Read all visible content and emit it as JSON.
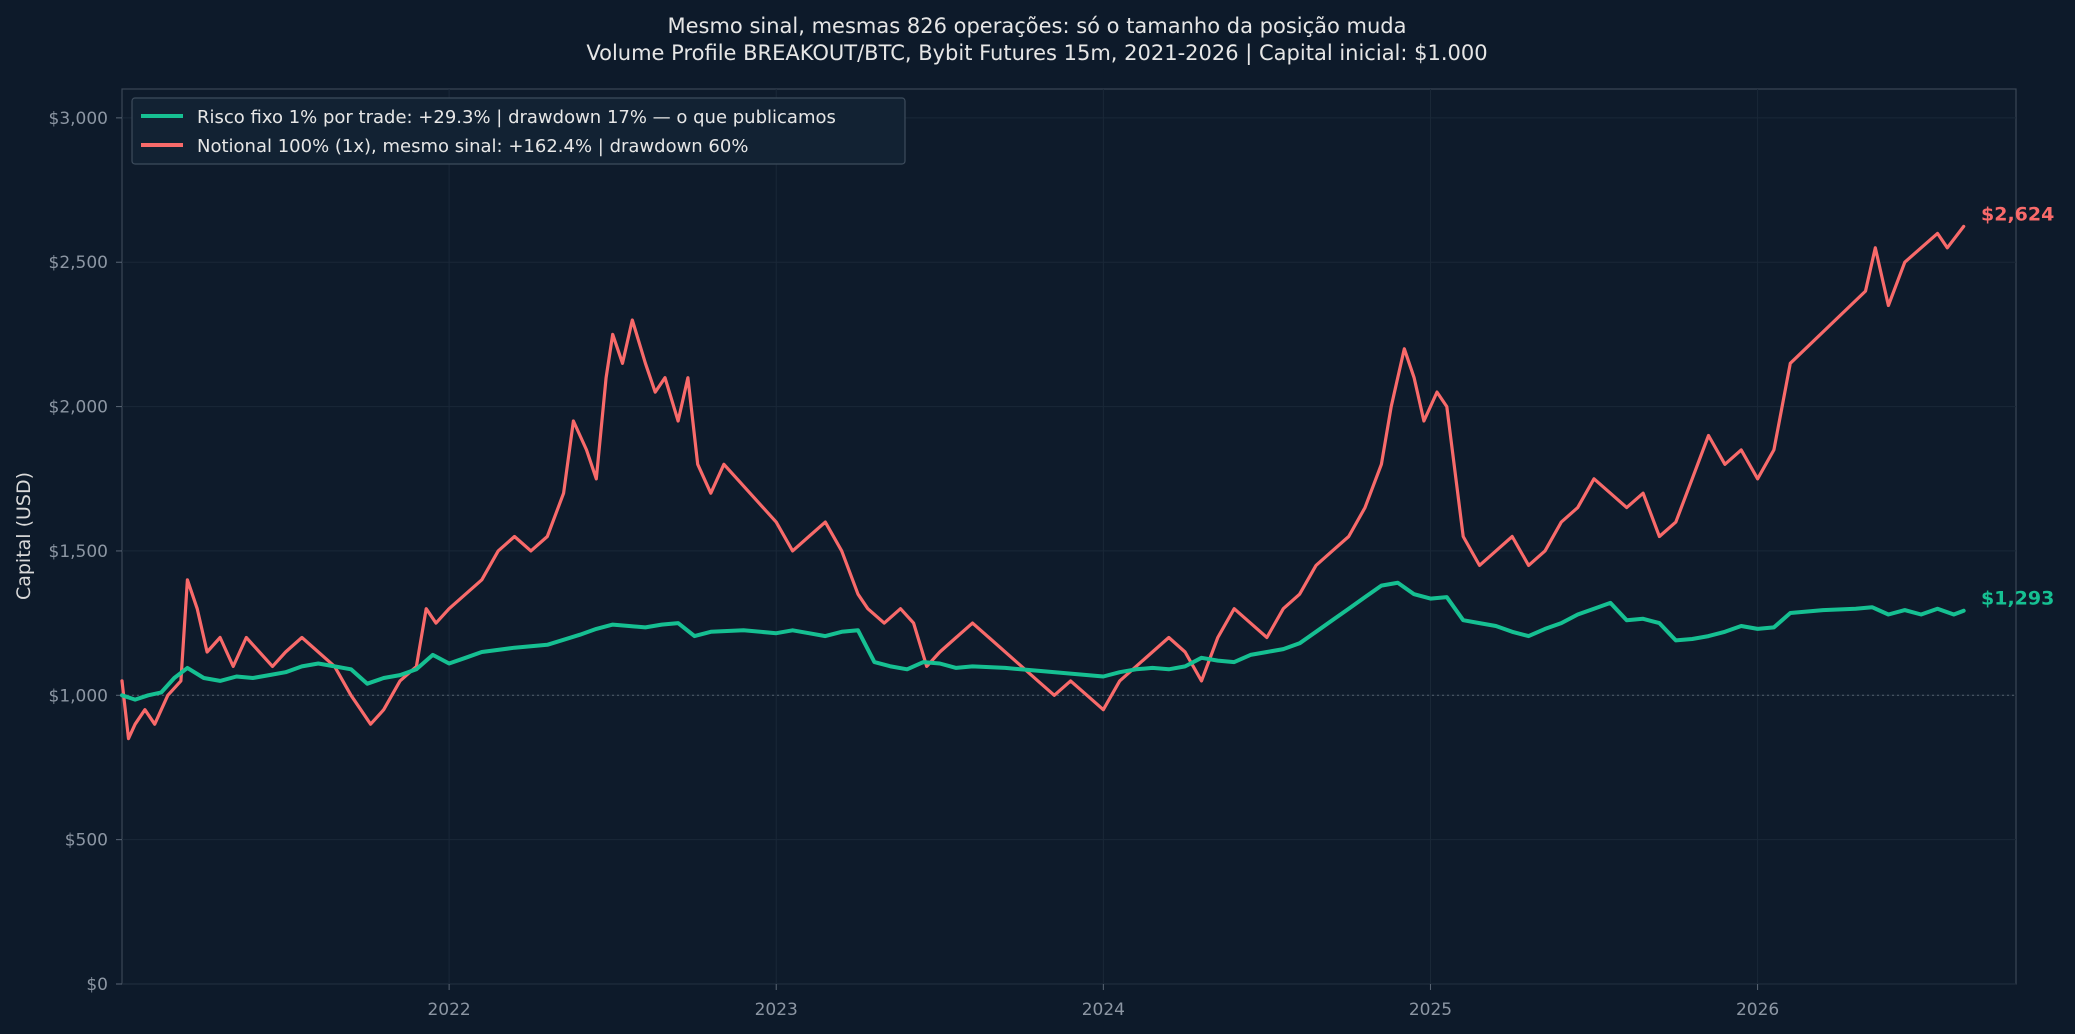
{
  "chart_data": {
    "type": "line",
    "title": "Mesmo sinal, mesmas 826 operações: só o tamanho da posição muda",
    "subtitle": "Volume Profile BREAKOUT/BTC, Bybit Futures 15m, 2021-2026 | Capital inicial: $1.000",
    "ylabel": "Capital (USD)",
    "xlabel": "",
    "xlim": [
      2021.0,
      2026.79
    ],
    "ylim": [
      0,
      3100
    ],
    "x_ticks": [
      2022,
      2023,
      2024,
      2025,
      2026
    ],
    "x_tick_labels": [
      "2022",
      "2023",
      "2024",
      "2025",
      "2026"
    ],
    "y_ticks": [
      0,
      500,
      1000,
      1500,
      2000,
      2500,
      3000
    ],
    "y_tick_labels": [
      "$0",
      "$500",
      "$1,000",
      "$1,500",
      "$2,000",
      "$2,500",
      "$3,000"
    ],
    "reference_line": 1000,
    "grid": true,
    "legend": "top-left",
    "series": [
      {
        "name": "Risco fixo 1% por trade: +29.3% | drawdown 17% — o que publicamos",
        "color": "#16c092",
        "end_label": "$1,293",
        "x": [
          2021.0,
          2021.04,
          2021.08,
          2021.12,
          2021.16,
          2021.2,
          2021.25,
          2021.3,
          2021.35,
          2021.4,
          2021.45,
          2021.5,
          2021.55,
          2021.6,
          2021.65,
          2021.7,
          2021.75,
          2021.8,
          2021.85,
          2021.9,
          2021.95,
          2022.0,
          2022.05,
          2022.1,
          2022.2,
          2022.3,
          2022.4,
          2022.45,
          2022.5,
          2022.55,
          2022.6,
          2022.65,
          2022.7,
          2022.75,
          2022.8,
          2022.9,
          2023.0,
          2023.05,
          2023.1,
          2023.15,
          2023.2,
          2023.25,
          2023.3,
          2023.35,
          2023.4,
          2023.45,
          2023.5,
          2023.55,
          2023.6,
          2023.7,
          2023.8,
          2023.9,
          2024.0,
          2024.05,
          2024.1,
          2024.15,
          2024.2,
          2024.25,
          2024.3,
          2024.35,
          2024.4,
          2024.45,
          2024.5,
          2024.55,
          2024.6,
          2024.65,
          2024.7,
          2024.75,
          2024.8,
          2024.85,
          2024.9,
          2024.95,
          2025.0,
          2025.05,
          2025.1,
          2025.15,
          2025.2,
          2025.25,
          2025.3,
          2025.35,
          2025.4,
          2025.45,
          2025.5,
          2025.55,
          2025.6,
          2025.65,
          2025.7,
          2025.75,
          2025.8,
          2025.85,
          2025.9,
          2025.95,
          2026.0,
          2026.05,
          2026.1,
          2026.2,
          2026.3,
          2026.35,
          2026.4,
          2026.45,
          2026.5,
          2026.55,
          2026.6,
          2026.63
        ],
        "y": [
          1000,
          985,
          1000,
          1010,
          1060,
          1095,
          1060,
          1050,
          1065,
          1060,
          1070,
          1080,
          1100,
          1110,
          1100,
          1090,
          1040,
          1060,
          1070,
          1090,
          1140,
          1110,
          1130,
          1150,
          1165,
          1175,
          1210,
          1230,
          1245,
          1240,
          1235,
          1245,
          1250,
          1205,
          1220,
          1225,
          1215,
          1225,
          1215,
          1205,
          1220,
          1225,
          1115,
          1100,
          1090,
          1115,
          1110,
          1095,
          1100,
          1095,
          1085,
          1075,
          1065,
          1080,
          1090,
          1095,
          1090,
          1100,
          1130,
          1120,
          1115,
          1140,
          1150,
          1160,
          1180,
          1220,
          1260,
          1300,
          1340,
          1380,
          1390,
          1350,
          1335,
          1340,
          1260,
          1250,
          1240,
          1220,
          1205,
          1230,
          1250,
          1280,
          1300,
          1320,
          1260,
          1265,
          1250,
          1190,
          1195,
          1205,
          1220,
          1240,
          1230,
          1235,
          1285,
          1295,
          1300,
          1305,
          1280,
          1295,
          1280,
          1300,
          1280,
          1293
        ]
      },
      {
        "name": "Notional 100% (1x), mesmo sinal: +162.4% | drawdown 60%",
        "color": "#f86a6a",
        "end_label": "$2,624",
        "x": [
          2021.0,
          2021.02,
          2021.04,
          2021.07,
          2021.1,
          2021.14,
          2021.18,
          2021.2,
          2021.23,
          2021.26,
          2021.3,
          2021.34,
          2021.38,
          2021.42,
          2021.46,
          2021.5,
          2021.55,
          2021.6,
          2021.65,
          2021.7,
          2021.73,
          2021.76,
          2021.8,
          2021.85,
          2021.9,
          2021.93,
          2021.96,
          2022.0,
          2022.05,
          2022.1,
          2022.15,
          2022.2,
          2022.25,
          2022.3,
          2022.35,
          2022.38,
          2022.42,
          2022.45,
          2022.48,
          2022.5,
          2022.53,
          2022.56,
          2022.6,
          2022.63,
          2022.66,
          2022.7,
          2022.73,
          2022.76,
          2022.8,
          2022.84,
          2023.0,
          2023.05,
          2023.1,
          2023.15,
          2023.2,
          2023.25,
          2023.28,
          2023.33,
          2023.38,
          2023.42,
          2023.46,
          2023.5,
          2023.55,
          2023.6,
          2023.65,
          2023.75,
          2023.8,
          2023.85,
          2023.9,
          2023.95,
          2024.0,
          2024.05,
          2024.1,
          2024.15,
          2024.2,
          2024.25,
          2024.3,
          2024.35,
          2024.4,
          2024.45,
          2024.5,
          2024.55,
          2024.6,
          2024.65,
          2024.7,
          2024.75,
          2024.8,
          2024.85,
          2024.88,
          2024.92,
          2024.95,
          2024.98,
          2025.02,
          2025.05,
          2025.1,
          2025.15,
          2025.2,
          2025.25,
          2025.3,
          2025.35,
          2025.4,
          2025.45,
          2025.5,
          2025.55,
          2025.6,
          2025.65,
          2025.7,
          2025.75,
          2025.8,
          2025.85,
          2025.9,
          2025.95,
          2026.0,
          2026.05,
          2026.1,
          2026.33,
          2026.36,
          2026.4,
          2026.45,
          2026.5,
          2026.55,
          2026.58,
          2026.63
        ],
        "y": [
          1050,
          850,
          900,
          950,
          900,
          1000,
          1050,
          1400,
          1300,
          1150,
          1200,
          1100,
          1200,
          1150,
          1100,
          1150,
          1200,
          1150,
          1100,
          1000,
          950,
          900,
          950,
          1050,
          1100,
          1300,
          1250,
          1300,
          1350,
          1400,
          1500,
          1550,
          1500,
          1550,
          1700,
          1950,
          1850,
          1750,
          2100,
          2250,
          2150,
          2300,
          2150,
          2050,
          2100,
          1950,
          2100,
          1800,
          1700,
          1800,
          1600,
          1500,
          1550,
          1600,
          1500,
          1350,
          1300,
          1250,
          1300,
          1250,
          1100,
          1150,
          1200,
          1250,
          1200,
          1100,
          1050,
          1000,
          1050,
          1000,
          950,
          1050,
          1100,
          1150,
          1200,
          1150,
          1050,
          1200,
          1300,
          1250,
          1200,
          1300,
          1350,
          1450,
          1500,
          1550,
          1650,
          1800,
          2000,
          2200,
          2100,
          1950,
          2050,
          2000,
          1550,
          1450,
          1500,
          1550,
          1450,
          1500,
          1600,
          1650,
          1750,
          1700,
          1650,
          1700,
          1550,
          1600,
          1750,
          1900,
          1800,
          1850,
          1750,
          1850,
          2150,
          2400,
          2550,
          2350,
          2500,
          2550,
          2600,
          2550,
          2624
        ]
      }
    ]
  }
}
